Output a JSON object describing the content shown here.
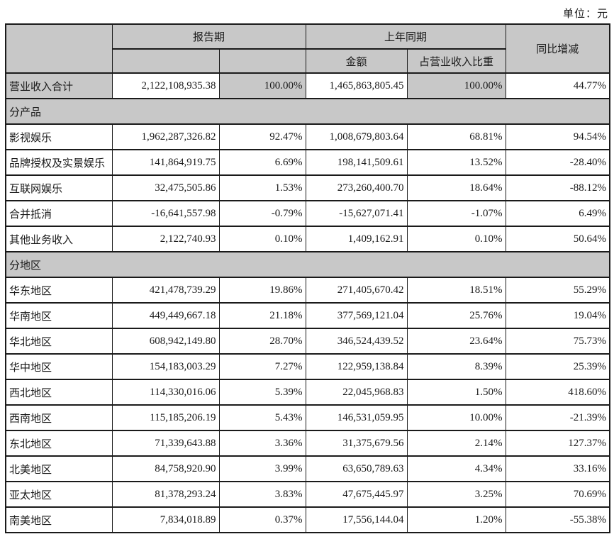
{
  "unit_label": "单位：元",
  "colors": {
    "header_fill": "#c8c8c8",
    "border": "#1a1a1a",
    "text": "#1a1a1a",
    "page_bg": "#ffffff"
  },
  "table": {
    "header": {
      "reporting_period": "报告期",
      "prior_period": "上年同期",
      "yoy_change": "同比增减",
      "amount": "金额",
      "pct_of_revenue": "占营业收入比重"
    },
    "total_row": {
      "label": "营业收入合计",
      "cells": [
        "2,122,108,935.38",
        "100.00%",
        "1,465,863,805.45",
        "100.00%",
        "44.77%"
      ]
    },
    "sections": [
      {
        "title": "分产品",
        "rows": [
          {
            "label": "影视娱乐",
            "cells": [
              "1,962,287,326.82",
              "92.47%",
              "1,008,679,803.64",
              "68.81%",
              "94.54%"
            ]
          },
          {
            "label": "品牌授权及实景娱乐",
            "cells": [
              "141,864,919.75",
              "6.69%",
              "198,141,509.61",
              "13.52%",
              "-28.40%"
            ]
          },
          {
            "label": "互联网娱乐",
            "cells": [
              "32,475,505.86",
              "1.53%",
              "273,260,400.70",
              "18.64%",
              "-88.12%"
            ]
          },
          {
            "label": "合并抵消",
            "cells": [
              "-16,641,557.98",
              "-0.79%",
              "-15,627,071.41",
              "-1.07%",
              "6.49%"
            ]
          },
          {
            "label": "其他业务收入",
            "cells": [
              "2,122,740.93",
              "0.10%",
              "1,409,162.91",
              "0.10%",
              "50.64%"
            ]
          }
        ]
      },
      {
        "title": "分地区",
        "rows": [
          {
            "label": "华东地区",
            "cells": [
              "421,478,739.29",
              "19.86%",
              "271,405,670.42",
              "18.51%",
              "55.29%"
            ]
          },
          {
            "label": "华南地区",
            "cells": [
              "449,449,667.18",
              "21.18%",
              "377,569,121.04",
              "25.76%",
              "19.04%"
            ]
          },
          {
            "label": "华北地区",
            "cells": [
              "608,942,149.80",
              "28.70%",
              "346,524,439.52",
              "23.64%",
              "75.73%"
            ]
          },
          {
            "label": "华中地区",
            "cells": [
              "154,183,003.29",
              "7.27%",
              "122,959,138.84",
              "8.39%",
              "25.39%"
            ]
          },
          {
            "label": "西北地区",
            "cells": [
              "114,330,016.06",
              "5.39%",
              "22,045,968.83",
              "1.50%",
              "418.60%"
            ]
          },
          {
            "label": "西南地区",
            "cells": [
              "115,185,206.19",
              "5.43%",
              "146,531,059.95",
              "10.00%",
              "-21.39%"
            ]
          },
          {
            "label": "东北地区",
            "cells": [
              "71,339,643.88",
              "3.36%",
              "31,375,679.56",
              "2.14%",
              "127.37%"
            ]
          },
          {
            "label": "北美地区",
            "cells": [
              "84,758,920.90",
              "3.99%",
              "63,650,789.63",
              "4.34%",
              "33.16%"
            ]
          },
          {
            "label": "亚太地区",
            "cells": [
              "81,378,293.24",
              "3.83%",
              "47,675,445.97",
              "3.25%",
              "70.69%"
            ]
          },
          {
            "label": "南美地区",
            "cells": [
              "7,834,018.89",
              "0.37%",
              "17,556,144.04",
              "1.20%",
              "-55.38%"
            ]
          }
        ]
      }
    ]
  }
}
